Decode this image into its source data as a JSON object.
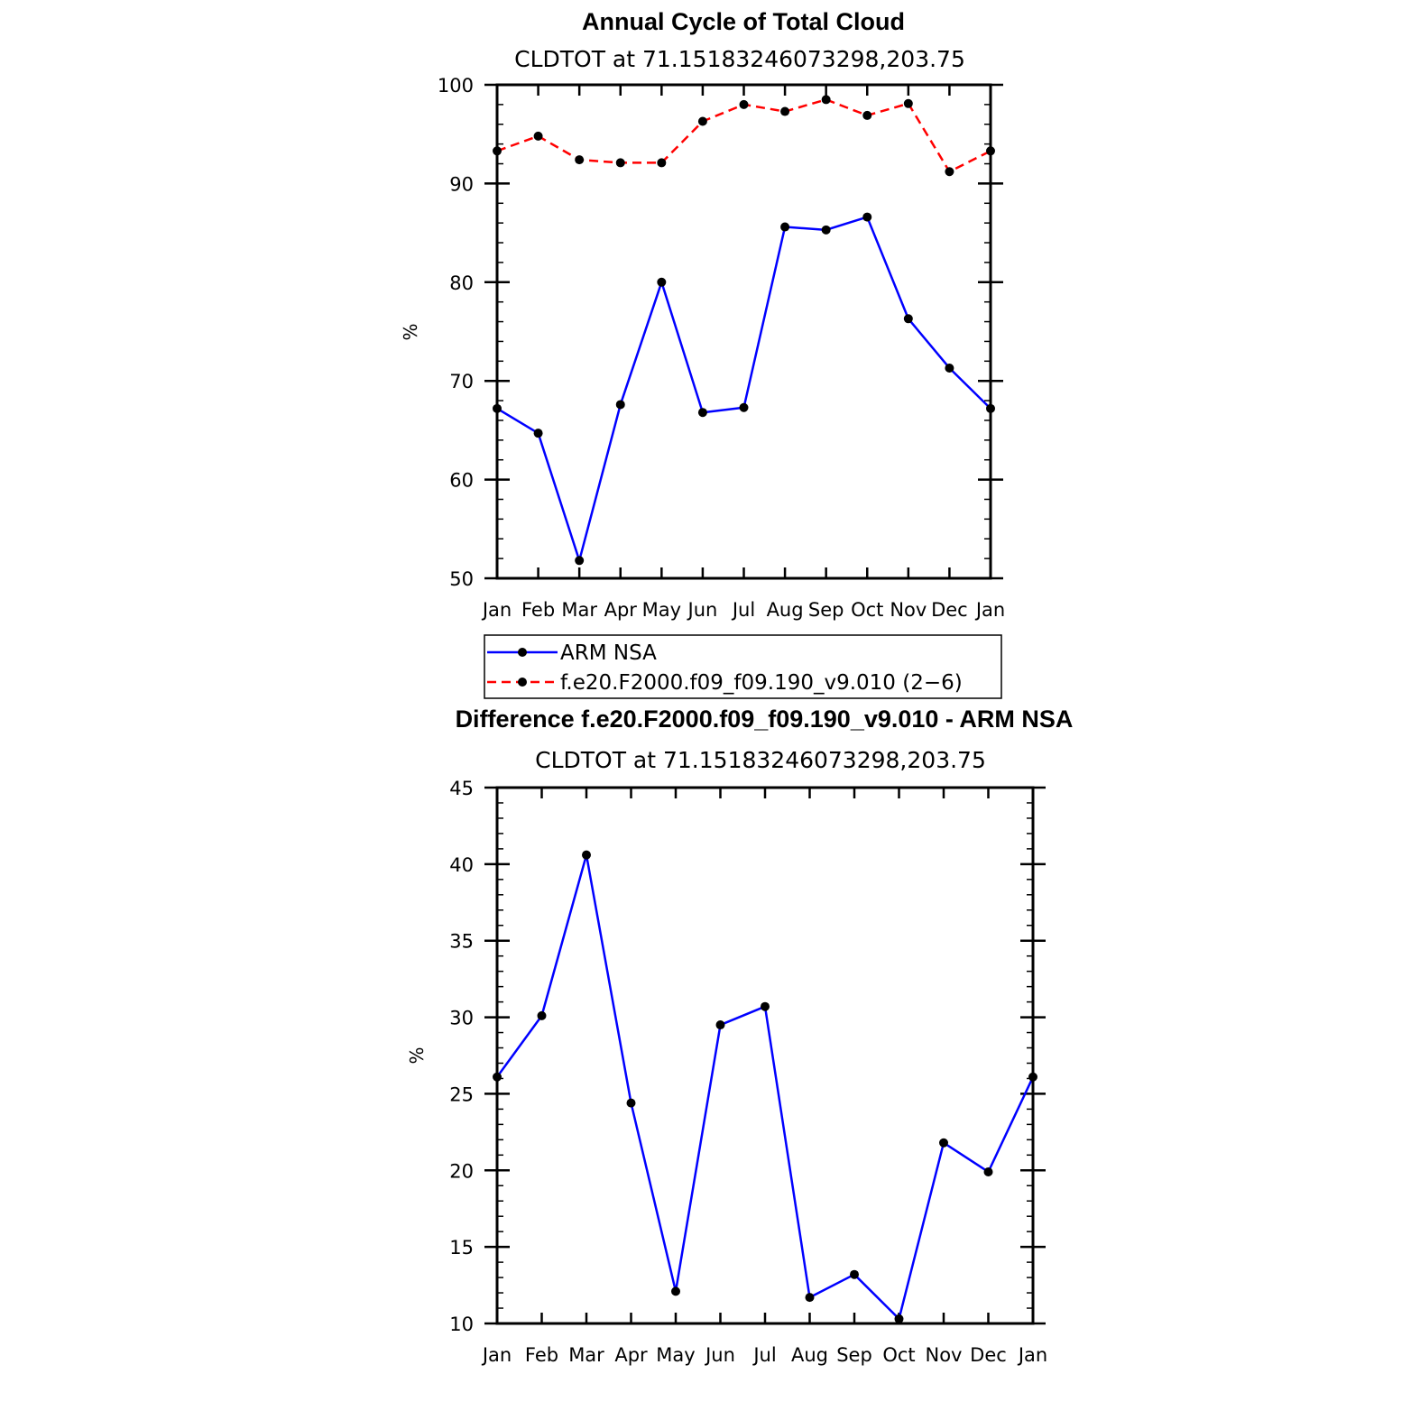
{
  "chart_data": [
    {
      "type": "line",
      "title": "Annual Cycle of Total Cloud",
      "subtitle": "CLDTOT at 71.15183246073298,203.75",
      "xlabel": "",
      "ylabel": "%",
      "categories": [
        "Jan",
        "Feb",
        "Mar",
        "Apr",
        "May",
        "Jun",
        "Jul",
        "Aug",
        "Sep",
        "Oct",
        "Nov",
        "Dec",
        "Jan"
      ],
      "ylim": [
        50,
        100
      ],
      "yticks": [
        50,
        60,
        70,
        80,
        90,
        100
      ],
      "series": [
        {
          "name": "ARM NSA",
          "color": "#0000ff",
          "dash": "solid",
          "values": [
            67.2,
            64.7,
            51.8,
            67.6,
            80.0,
            66.8,
            67.3,
            85.6,
            85.3,
            86.6,
            76.3,
            71.3,
            67.2
          ]
        },
        {
          "name": "f.e20.F2000.f09_f09.190_v9.010 (2−6)",
          "color": "#ff0000",
          "dash": "dashed",
          "values": [
            93.3,
            94.8,
            92.4,
            92.1,
            92.1,
            96.3,
            98.0,
            97.3,
            98.5,
            96.9,
            98.1,
            91.2,
            93.3
          ]
        }
      ],
      "legend": "below"
    },
    {
      "type": "line",
      "title": "Difference f.e20.F2000.f09_f09.190_v9.010 - ARM NSA",
      "subtitle": "CLDTOT at 71.15183246073298,203.75",
      "xlabel": "",
      "ylabel": "%",
      "categories": [
        "Jan",
        "Feb",
        "Mar",
        "Apr",
        "May",
        "Jun",
        "Jul",
        "Aug",
        "Sep",
        "Oct",
        "Nov",
        "Dec",
        "Jan"
      ],
      "ylim": [
        10,
        45
      ],
      "yticks": [
        10,
        15,
        20,
        25,
        30,
        35,
        40,
        45
      ],
      "series": [
        {
          "name": "Difference",
          "color": "#0000ff",
          "dash": "solid",
          "values": [
            26.1,
            30.1,
            40.6,
            24.4,
            12.1,
            29.5,
            30.7,
            11.7,
            13.2,
            10.3,
            21.8,
            19.9,
            26.1
          ]
        }
      ]
    }
  ]
}
